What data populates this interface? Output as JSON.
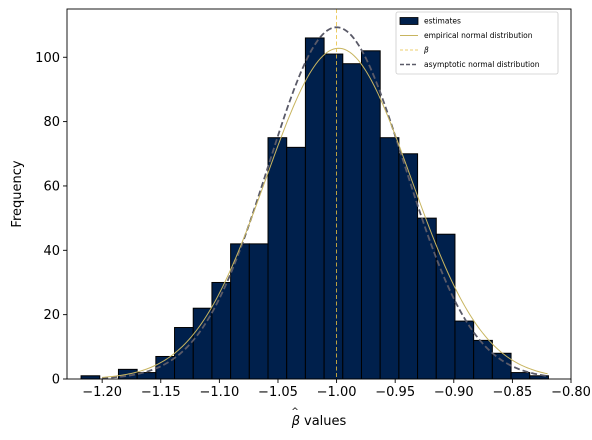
{
  "chart_data": {
    "type": "bar",
    "xlabel": "values",
    "xlabel_symbol": "β",
    "ylabel": "Frequency",
    "xlim": [
      -1.23,
      -0.8
    ],
    "ylim": [
      0,
      115
    ],
    "xticks": [
      -1.2,
      -1.15,
      -1.1,
      -1.05,
      -1.0,
      -0.95,
      -0.9,
      -0.85,
      -0.8
    ],
    "xtick_labels": [
      "−1.20",
      "−1.15",
      "−1.10",
      "−1.05",
      "−1.00",
      "−0.95",
      "−0.90",
      "−0.85",
      "−0.80"
    ],
    "yticks": [
      0,
      20,
      40,
      60,
      80,
      100
    ],
    "ytick_labels": [
      "0",
      "20",
      "40",
      "60",
      "80",
      "100"
    ],
    "grid": false,
    "legend_position": "top-right",
    "histogram": {
      "bin_start": -1.218,
      "bin_width": 0.01595,
      "counts": [
        1,
        0,
        3,
        2,
        7,
        16,
        22,
        30,
        42,
        42,
        75,
        72,
        106,
        101,
        98,
        102,
        75,
        70,
        50,
        45,
        18,
        12,
        8,
        2,
        1
      ]
    },
    "empirical_normal": {
      "mean": -0.9983,
      "sd": 0.0619,
      "x_range": [
        -1.2,
        -0.82
      ]
    },
    "asymptotic_normal": {
      "mean": -1.0,
      "sd": 0.0582,
      "x_range": [
        -1.2,
        -0.82
      ]
    },
    "beta_line": {
      "x": -1.0
    },
    "legend": [
      {
        "label": "estimates",
        "kind": "patch"
      },
      {
        "label": "empirical normal distribution",
        "kind": "solid-line"
      },
      {
        "label": "β",
        "kind": "dashed-thin"
      },
      {
        "label": "asymptotic normal distribution",
        "kind": "dashed-thick"
      }
    ],
    "colors": {
      "bar_fill": "#00204c",
      "bar_edge": "#000000",
      "empirical_line": "#c8b560",
      "beta_line": "#e8c040",
      "asymptotic_line": "#5a5a68"
    }
  }
}
